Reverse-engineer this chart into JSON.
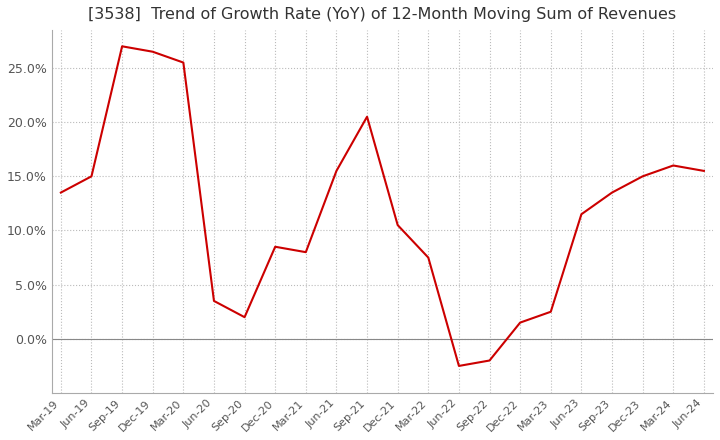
{
  "title": "[3538]  Trend of Growth Rate (YoY) of 12-Month Moving Sum of Revenues",
  "title_fontsize": 11.5,
  "line_color": "#cc0000",
  "background_color": "#ffffff",
  "grid_color": "#bbbbbb",
  "x_labels": [
    "Mar-19",
    "Jun-19",
    "Sep-19",
    "Dec-19",
    "Mar-20",
    "Jun-20",
    "Sep-20",
    "Dec-20",
    "Mar-21",
    "Jun-21",
    "Sep-21",
    "Dec-21",
    "Mar-22",
    "Jun-22",
    "Sep-22",
    "Dec-22",
    "Mar-23",
    "Jun-23",
    "Sep-23",
    "Dec-23",
    "Mar-24",
    "Jun-24"
  ],
  "y_values": [
    13.5,
    15.0,
    27.0,
    26.5,
    25.5,
    3.5,
    2.0,
    8.5,
    8.0,
    15.5,
    20.5,
    10.5,
    7.5,
    -2.5,
    -2.0,
    1.5,
    2.5,
    11.5,
    13.5,
    15.0,
    16.0,
    15.5
  ],
  "ylim_min": -5.0,
  "ylim_max": 28.5,
  "yticks": [
    0.0,
    5.0,
    10.0,
    15.0,
    20.0,
    25.0
  ]
}
